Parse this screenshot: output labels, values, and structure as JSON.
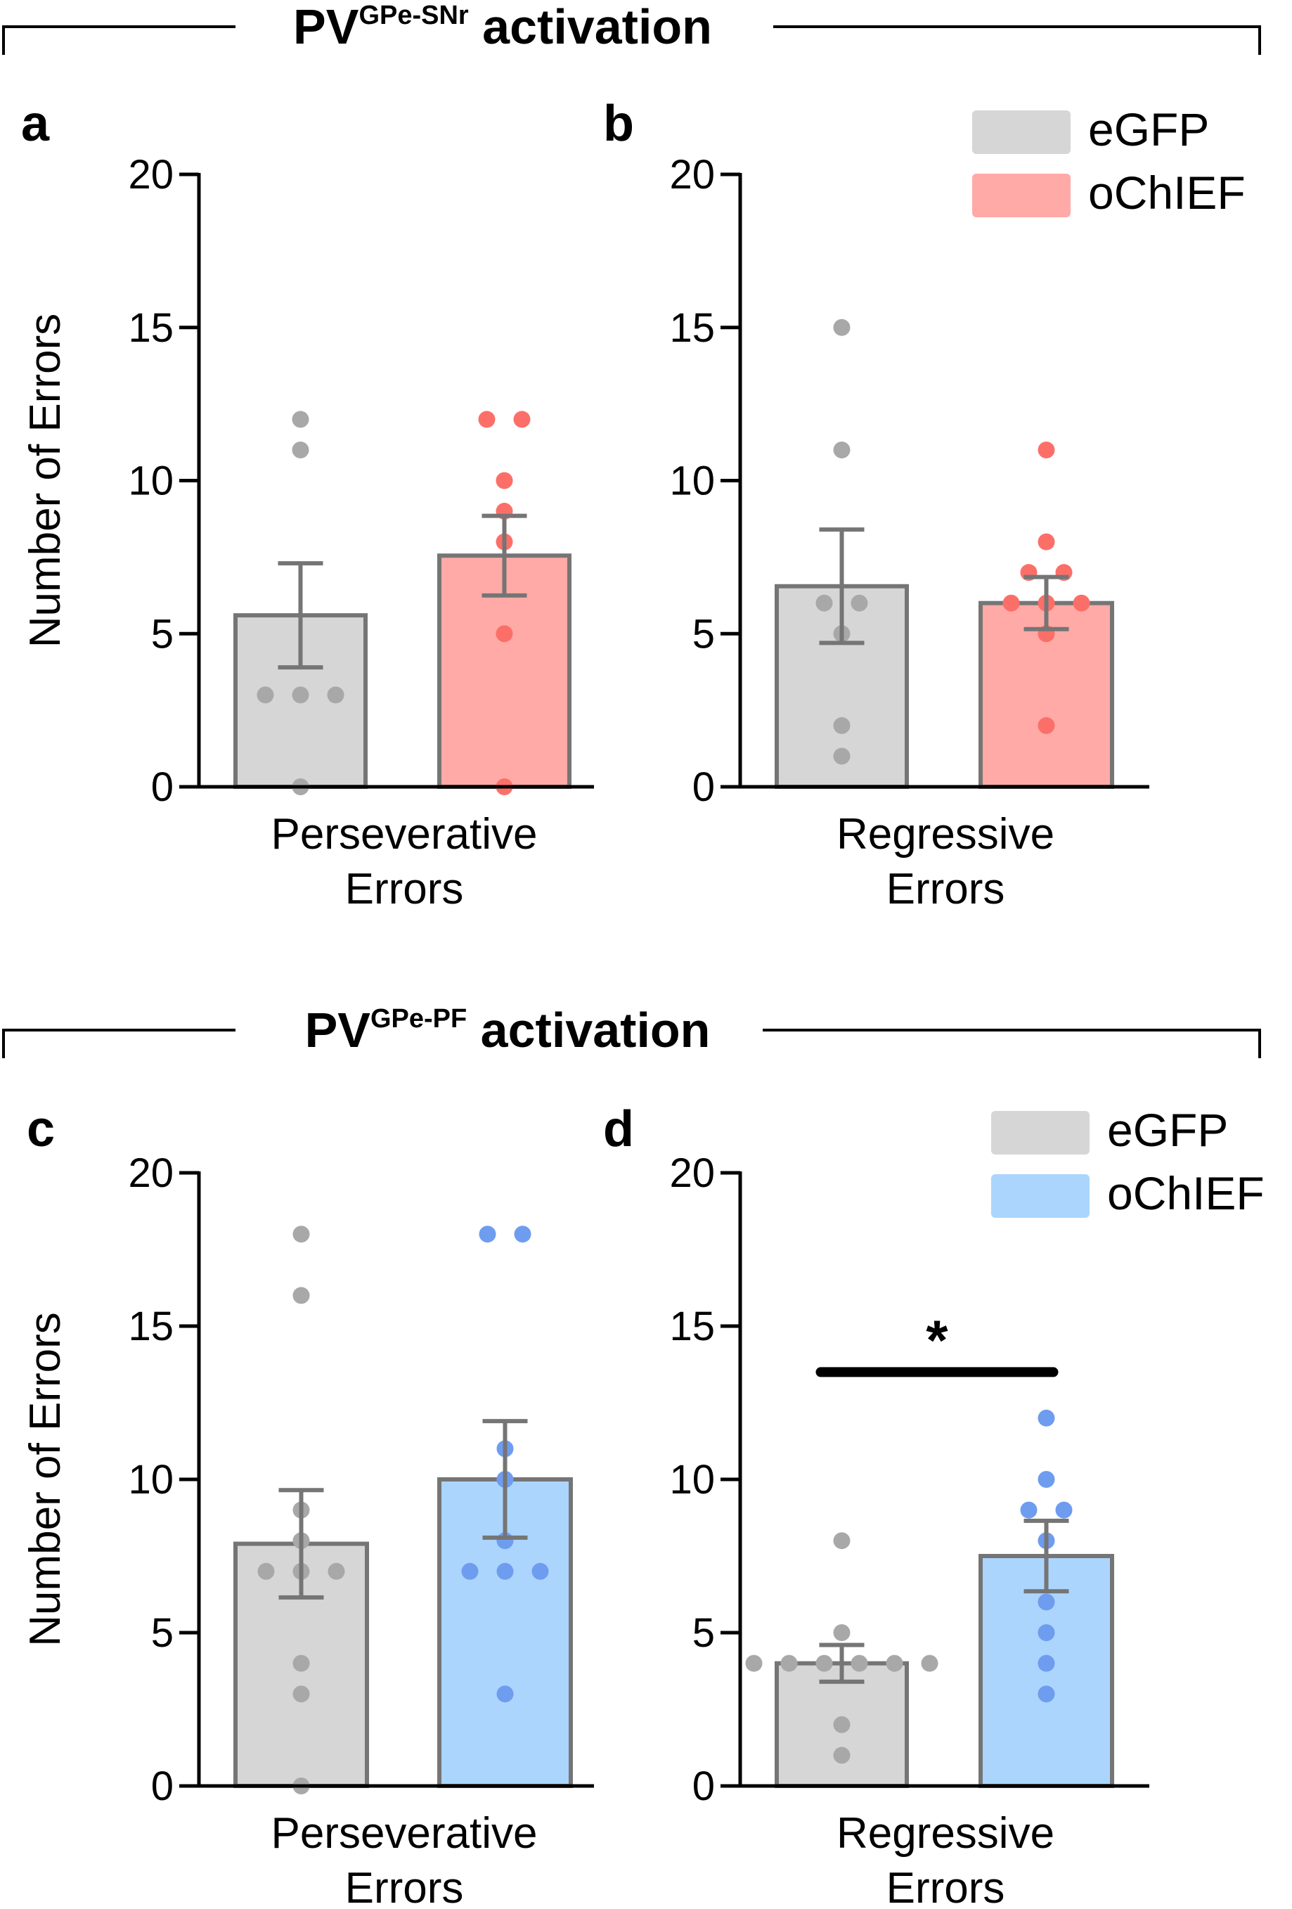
{
  "sections": [
    {
      "title_main": "PV",
      "title_sup": "GPe-SNr",
      "title_rest": " activation"
    },
    {
      "title_main": "PV",
      "title_sup": "GPe-PF",
      "title_rest": " activation"
    }
  ],
  "colors": {
    "egfp_fill": "#d6d6d6",
    "egfp_point": "#a8a8a8",
    "ochief_snr_fill": "#ffaaa6",
    "ochief_snr_point": "#fc6f69",
    "ochief_pf_fill": "#abd5fd",
    "ochief_pf_point": "#6e9cef",
    "bar_edge": "#757575",
    "axis": "#000000"
  },
  "chart_data": [
    {
      "panel": "a",
      "type": "bar",
      "ylabel": "Number of Errors",
      "xlabel": [
        "Perseverative",
        "Errors"
      ],
      "ylim": [
        0,
        20
      ],
      "yticks": [
        0,
        5,
        10,
        15,
        20
      ],
      "series": [
        {
          "name": "eGFP",
          "mean": 5.6,
          "sem": 1.7,
          "points": [
            12,
            11,
            3,
            3,
            3,
            0
          ]
        },
        {
          "name": "oChIEF",
          "mean": 7.55,
          "sem": 1.3,
          "points": [
            12,
            12,
            10,
            9,
            8,
            5,
            0
          ]
        }
      ],
      "significance": null,
      "legend": null
    },
    {
      "panel": "b",
      "type": "bar",
      "ylabel": "",
      "xlabel": [
        "Regressive",
        "Errors"
      ],
      "ylim": [
        0,
        20
      ],
      "yticks": [
        0,
        5,
        10,
        15,
        20
      ],
      "series": [
        {
          "name": "eGFP",
          "mean": 6.55,
          "sem": 1.85,
          "points": [
            15,
            11,
            6,
            6,
            5,
            2,
            1
          ]
        },
        {
          "name": "oChIEF",
          "mean": 6.0,
          "sem": 0.85,
          "points": [
            11,
            8,
            7,
            7,
            6,
            6,
            6,
            5,
            2
          ]
        }
      ],
      "significance": null,
      "legend": {
        "position": "top-right",
        "entries": [
          "eGFP",
          "oChIEF"
        ]
      }
    },
    {
      "panel": "c",
      "type": "bar",
      "ylabel": "Number of Errors",
      "xlabel": [
        "Perseverative",
        "Errors"
      ],
      "ylim": [
        0,
        20
      ],
      "yticks": [
        0,
        5,
        10,
        15,
        20
      ],
      "series": [
        {
          "name": "eGFP",
          "mean": 7.9,
          "sem": 1.75,
          "points": [
            18,
            16,
            9,
            8,
            7,
            7,
            7,
            4,
            3,
            0
          ]
        },
        {
          "name": "oChIEF",
          "mean": 10.0,
          "sem": 1.9,
          "points": [
            18,
            18,
            11,
            10,
            8,
            7,
            7,
            7,
            3
          ]
        }
      ],
      "significance": null,
      "legend": null
    },
    {
      "panel": "d",
      "type": "bar",
      "ylabel": "",
      "xlabel": [
        "Regressive",
        "Errors"
      ],
      "ylim": [
        0,
        20
      ],
      "yticks": [
        0,
        5,
        10,
        15,
        20
      ],
      "series": [
        {
          "name": "eGFP",
          "mean": 4.0,
          "sem": 0.6,
          "points": [
            8,
            5,
            4,
            4,
            4,
            4,
            4,
            4,
            2,
            1
          ]
        },
        {
          "name": "oChIEF",
          "mean": 7.5,
          "sem": 1.15,
          "points": [
            12,
            10,
            9,
            9,
            8,
            6,
            5,
            4,
            3
          ]
        }
      ],
      "significance": {
        "label": "*",
        "level": 13.5
      },
      "legend": {
        "position": "top-right",
        "entries": [
          "eGFP",
          "oChIEF"
        ]
      }
    }
  ]
}
